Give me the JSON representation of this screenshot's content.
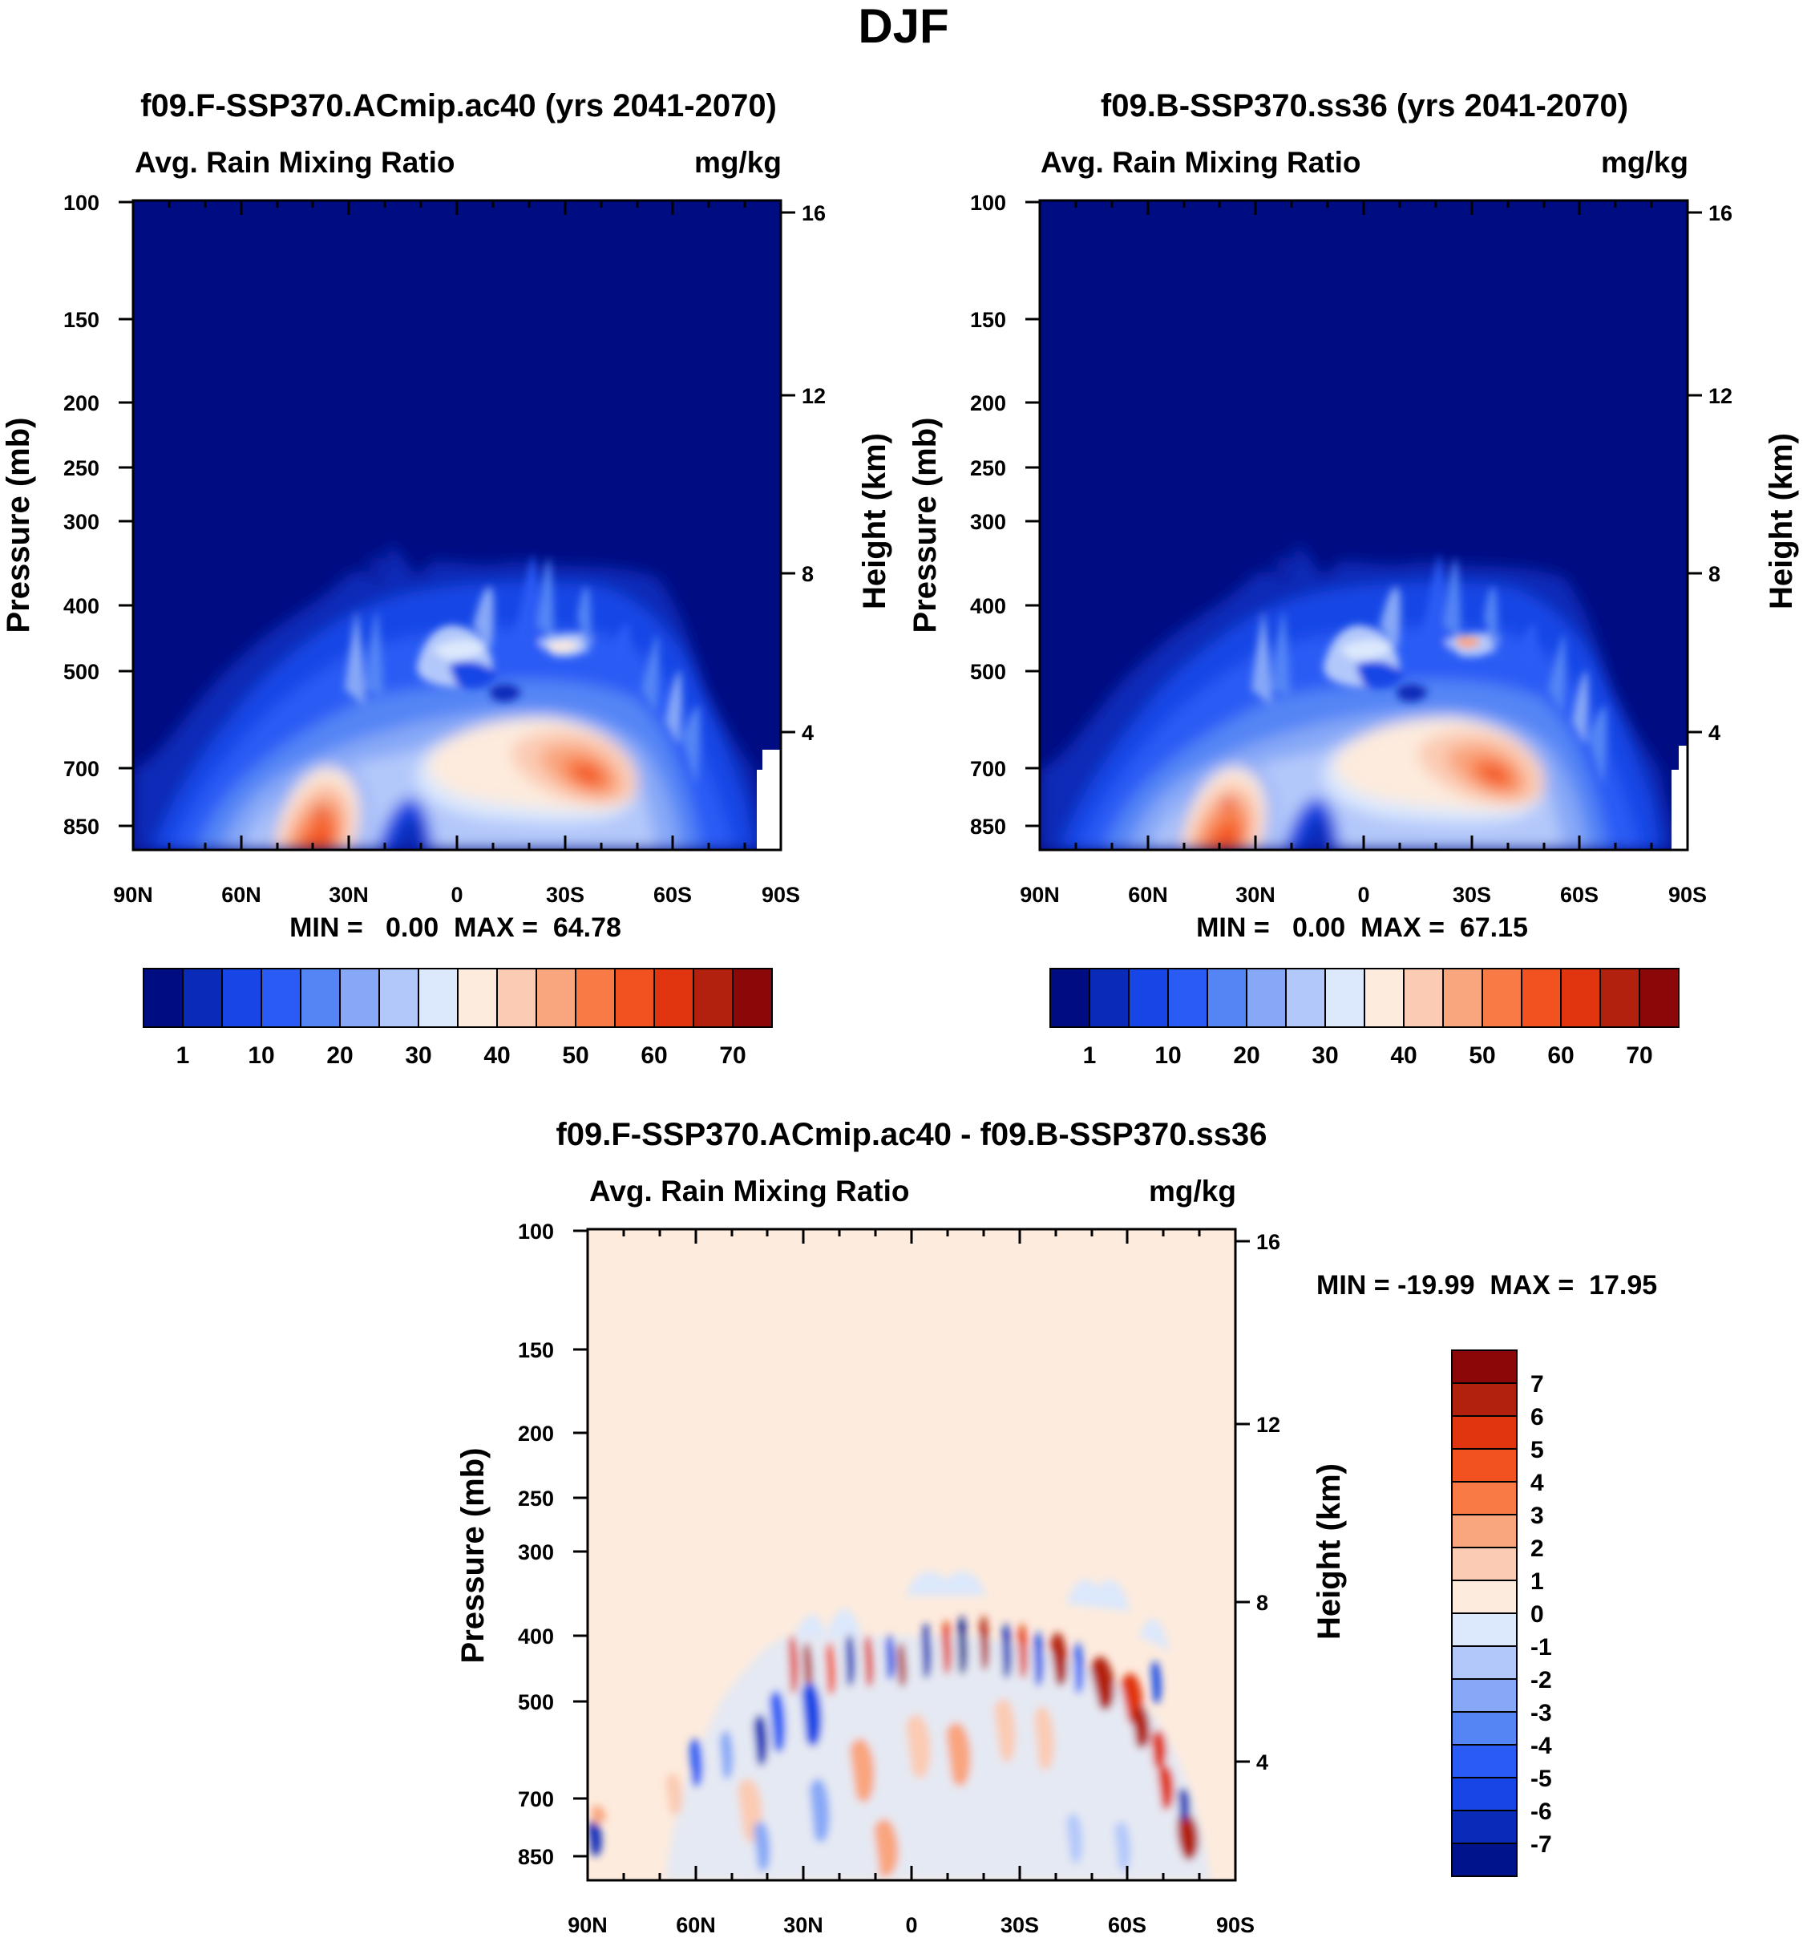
{
  "figure": {
    "title": "DJF"
  },
  "chart_data": [
    {
      "type": "heatmap",
      "id": "panel1",
      "title": "f09.F-SSP370.ACmip.ac40 (yrs 2041-2070)",
      "left_label": "Avg. Rain Mixing Ratio",
      "right_label": "mg/kg",
      "ylabel": "Pressure (mb)",
      "ylabel_right": "Height (km)",
      "x_ticks": [
        "90N",
        "60N",
        "30N",
        "0",
        "30S",
        "60S",
        "90S"
      ],
      "x_values": [
        90,
        60,
        30,
        0,
        -30,
        -60,
        -90
      ],
      "y_ticks": [
        "100",
        "150",
        "200",
        "250",
        "300",
        "400",
        "500",
        "700",
        "850"
      ],
      "y_values": [
        100,
        150,
        200,
        250,
        300,
        400,
        500,
        700,
        850
      ],
      "y_range": [
        100,
        1000
      ],
      "height_ticks": [
        "16",
        "12",
        "8",
        "4"
      ],
      "height_values": [
        16,
        12,
        8,
        4
      ],
      "stats": "MIN =   0.00  MAX =  64.78",
      "min": 0.0,
      "max": 64.78,
      "levels": [
        1,
        5,
        10,
        15,
        20,
        25,
        30,
        35,
        40,
        45,
        50,
        55,
        60,
        65,
        70
      ],
      "colorbar_labels": [
        "1",
        "10",
        "20",
        "30",
        "40",
        "50",
        "60",
        "70"
      ]
    },
    {
      "type": "heatmap",
      "id": "panel2",
      "title": "f09.B-SSP370.ss36 (yrs 2041-2070)",
      "left_label": "Avg. Rain Mixing Ratio",
      "right_label": "mg/kg",
      "ylabel": "Pressure (mb)",
      "ylabel_right": "Height (km)",
      "x_ticks": [
        "90N",
        "60N",
        "30N",
        "0",
        "30S",
        "60S",
        "90S"
      ],
      "x_values": [
        90,
        60,
        30,
        0,
        -30,
        -60,
        -90
      ],
      "y_ticks": [
        "100",
        "150",
        "200",
        "250",
        "300",
        "400",
        "500",
        "700",
        "850"
      ],
      "y_values": [
        100,
        150,
        200,
        250,
        300,
        400,
        500,
        700,
        850
      ],
      "y_range": [
        100,
        1000
      ],
      "height_ticks": [
        "16",
        "12",
        "8",
        "4"
      ],
      "height_values": [
        16,
        12,
        8,
        4
      ],
      "stats": "MIN =   0.00  MAX =  67.15",
      "min": 0.0,
      "max": 67.15,
      "levels": [
        1,
        5,
        10,
        15,
        20,
        25,
        30,
        35,
        40,
        45,
        50,
        55,
        60,
        65,
        70
      ],
      "colorbar_labels": [
        "1",
        "10",
        "20",
        "30",
        "40",
        "50",
        "60",
        "70"
      ]
    },
    {
      "type": "heatmap",
      "id": "panel3",
      "title": "f09.F-SSP370.ACmip.ac40 - f09.B-SSP370.ss36",
      "left_label": "Avg. Rain Mixing Ratio",
      "right_label": "mg/kg",
      "ylabel": "Pressure (mb)",
      "ylabel_right": "Height (km)",
      "x_ticks": [
        "90N",
        "60N",
        "30N",
        "0",
        "30S",
        "60S",
        "90S"
      ],
      "x_values": [
        90,
        60,
        30,
        0,
        -30,
        -60,
        -90
      ],
      "y_ticks": [
        "100",
        "150",
        "200",
        "250",
        "300",
        "400",
        "500",
        "700",
        "850"
      ],
      "y_values": [
        100,
        150,
        200,
        250,
        300,
        400,
        500,
        700,
        850
      ],
      "y_range": [
        100,
        1000
      ],
      "height_ticks": [
        "16",
        "12",
        "8",
        "4"
      ],
      "height_values": [
        16,
        12,
        8,
        4
      ],
      "stats": "MIN = -19.99  MAX =  17.95",
      "min": -19.99,
      "max": 17.95,
      "levels": [
        -7,
        -6,
        -5,
        -4,
        -3,
        -2,
        -1,
        0,
        1,
        2,
        3,
        4,
        5,
        6,
        7
      ],
      "colorbar_labels": [
        "7",
        "6",
        "5",
        "4",
        "3",
        "2",
        "1",
        "0",
        "-1",
        "-2",
        "-3",
        "-4",
        "-5",
        "-6",
        "-7"
      ]
    }
  ],
  "colors": {
    "abs_scale": [
      "#000c82",
      "#0a2bb8",
      "#1846e6",
      "#2a5cf5",
      "#5585f5",
      "#87a8f7",
      "#b3c8fa",
      "#dce8fc",
      "#fdebdd",
      "#fbcbb3",
      "#f9a57e",
      "#f97a45",
      "#f25220",
      "#e13510",
      "#b2210d",
      "#8b0708"
    ],
    "diff_scale": [
      "#00138c",
      "#0a2bb8",
      "#1846e6",
      "#2a5cf5",
      "#5585f5",
      "#87a8f7",
      "#b3c8fa",
      "#dce8fc",
      "#fdebdd",
      "#fbcbb3",
      "#f9a57e",
      "#f97a45",
      "#f25220",
      "#e13510",
      "#b2210d",
      "#8b0708"
    ]
  }
}
